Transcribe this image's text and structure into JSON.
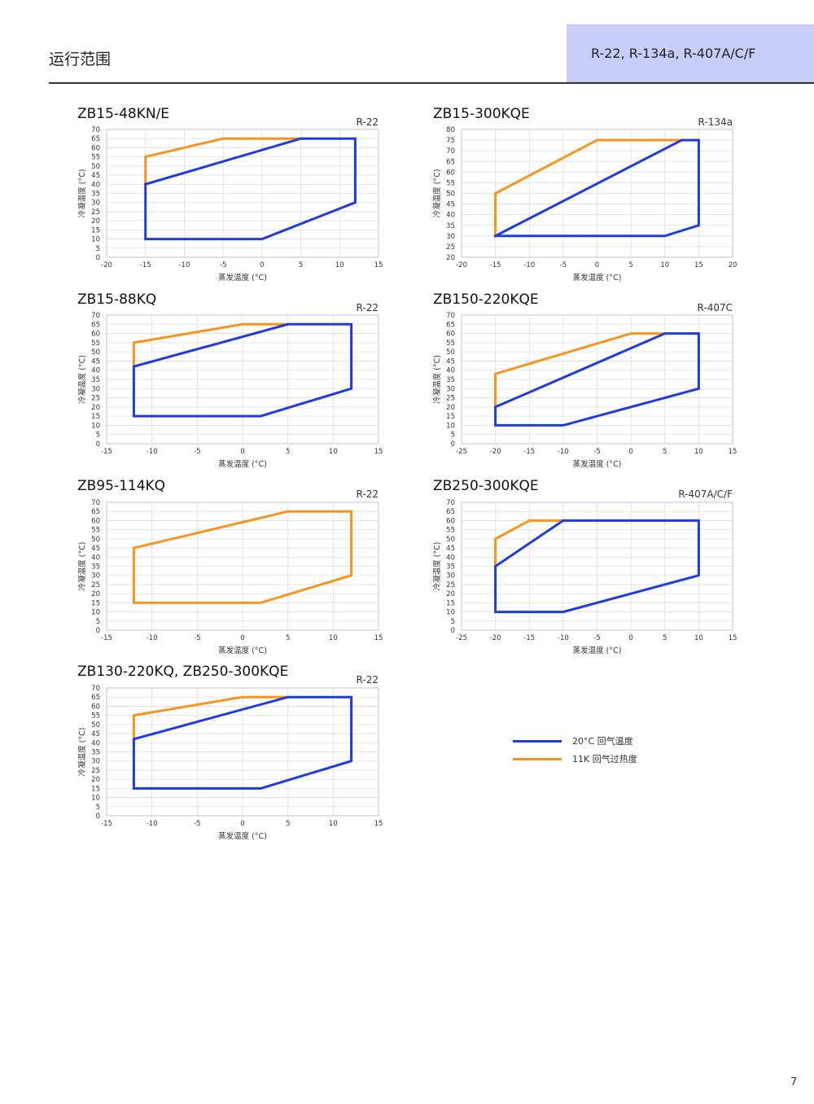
{
  "header": {
    "title": "运行范围",
    "refrigerants": "R-22, R-134a, R-407A/C/F"
  },
  "colors": {
    "blue": "#1f3ae0",
    "orange": "#f7941d",
    "grid": "#dddddd"
  },
  "legend": [
    {
      "label": "20°C 回气温度",
      "color": "#1f3ae0"
    },
    {
      "label": "11K 回气过热度",
      "color": "#f7941d"
    }
  ],
  "page_number": "7",
  "chart_data": [
    {
      "type": "line",
      "title": "ZB15-48KN/E",
      "refrigerant": "R-22",
      "xlabel": "蒸发温度 (°C)",
      "ylabel": "冷凝温度 (°C)",
      "xlim": [
        -20,
        15
      ],
      "ylim": [
        0,
        70
      ],
      "xticks": [
        -20,
        -15,
        -10,
        -5,
        0,
        5,
        10,
        15
      ],
      "yticks": [
        0,
        5,
        10,
        15,
        20,
        25,
        30,
        35,
        40,
        45,
        50,
        55,
        60,
        65,
        70
      ],
      "series": [
        {
          "color": "#f7941d",
          "points": [
            [
              -15,
              40
            ],
            [
              -15,
              55
            ],
            [
              -5,
              65
            ],
            [
              5,
              65
            ]
          ]
        },
        {
          "color": "#1f3ae0",
          "points": [
            [
              -15,
              10
            ],
            [
              0,
              10
            ],
            [
              12,
              30
            ],
            [
              12,
              65
            ],
            [
              5,
              65
            ],
            [
              -15,
              40
            ],
            [
              -15,
              10
            ]
          ]
        }
      ]
    },
    {
      "type": "line",
      "title": "ZB15-300KQE",
      "refrigerant": "R-134a",
      "xlabel": "蒸发温度 (°C)",
      "ylabel": "冷凝温度 (°C)",
      "xlim": [
        -20,
        20
      ],
      "ylim": [
        20,
        80
      ],
      "xticks": [
        -20,
        -15,
        -10,
        -5,
        0,
        5,
        10,
        15,
        20
      ],
      "yticks": [
        20,
        25,
        30,
        35,
        40,
        45,
        50,
        55,
        60,
        65,
        70,
        75,
        80
      ],
      "series": [
        {
          "color": "#f7941d",
          "points": [
            [
              -15,
              30
            ],
            [
              -15,
              50
            ],
            [
              0,
              75
            ],
            [
              12.5,
              75
            ]
          ]
        },
        {
          "color": "#1f3ae0",
          "points": [
            [
              -15,
              30
            ],
            [
              10,
              30
            ],
            [
              15,
              35
            ],
            [
              15,
              75
            ],
            [
              12.5,
              75
            ],
            [
              -15,
              30
            ]
          ]
        }
      ]
    },
    {
      "type": "line",
      "title": "ZB15-88KQ",
      "refrigerant": "R-22",
      "xlabel": "蒸发温度 (°C)",
      "ylabel": "冷凝温度 (°C)",
      "xlim": [
        -15,
        15
      ],
      "ylim": [
        0,
        70
      ],
      "xticks": [
        -15,
        -10,
        -5,
        0,
        5,
        10,
        15
      ],
      "yticks": [
        0,
        5,
        10,
        15,
        20,
        25,
        30,
        35,
        40,
        45,
        50,
        55,
        60,
        65,
        70
      ],
      "series": [
        {
          "color": "#f7941d",
          "points": [
            [
              -12,
              42
            ],
            [
              -12,
              55
            ],
            [
              0,
              65
            ],
            [
              5,
              65
            ]
          ]
        },
        {
          "color": "#1f3ae0",
          "points": [
            [
              -12,
              15
            ],
            [
              2,
              15
            ],
            [
              12,
              30
            ],
            [
              12,
              65
            ],
            [
              5,
              65
            ],
            [
              -12,
              42
            ],
            [
              -12,
              15
            ]
          ]
        }
      ]
    },
    {
      "type": "line",
      "title": "ZB150-220KQE",
      "refrigerant": "R-407C",
      "xlabel": "蒸发温度 (°C)",
      "ylabel": "冷凝温度 (°C)",
      "xlim": [
        -25,
        15
      ],
      "ylim": [
        0,
        70
      ],
      "xticks": [
        -25,
        -20,
        -15,
        -10,
        -5,
        0,
        5,
        10,
        15
      ],
      "yticks": [
        0,
        5,
        10,
        15,
        20,
        25,
        30,
        35,
        40,
        45,
        50,
        55,
        60,
        65,
        70
      ],
      "series": [
        {
          "color": "#f7941d",
          "points": [
            [
              -20,
              20
            ],
            [
              -20,
              38
            ],
            [
              0,
              60
            ],
            [
              5,
              60
            ]
          ]
        },
        {
          "color": "#1f3ae0",
          "points": [
            [
              -20,
              10
            ],
            [
              -10,
              10
            ],
            [
              10,
              30
            ],
            [
              10,
              60
            ],
            [
              5,
              60
            ],
            [
              -20,
              20
            ],
            [
              -20,
              10
            ]
          ]
        }
      ]
    },
    {
      "type": "line",
      "title": "ZB95-114KQ",
      "refrigerant": "R-22",
      "xlabel": "蒸发温度 (°C)",
      "ylabel": "冷凝温度 (°C)",
      "xlim": [
        -15,
        15
      ],
      "ylim": [
        0,
        70
      ],
      "xticks": [
        -15,
        -10,
        -5,
        0,
        5,
        10,
        15
      ],
      "yticks": [
        0,
        5,
        10,
        15,
        20,
        25,
        30,
        35,
        40,
        45,
        50,
        55,
        60,
        65,
        70
      ],
      "series": [
        {
          "color": "#f7941d",
          "points": [
            [
              -12,
              15
            ],
            [
              2,
              15
            ],
            [
              12,
              30
            ],
            [
              12,
              65
            ],
            [
              5,
              65
            ],
            [
              -12,
              45
            ],
            [
              -12,
              15
            ]
          ]
        }
      ]
    },
    {
      "type": "line",
      "title": "ZB250-300KQE",
      "refrigerant": "R-407A/C/F",
      "xlabel": "蒸发温度 (°C)",
      "ylabel": "冷凝温度 (°C)",
      "xlim": [
        -25,
        15
      ],
      "ylim": [
        0,
        70
      ],
      "xticks": [
        -25,
        -20,
        -15,
        -10,
        -5,
        0,
        5,
        10,
        15
      ],
      "yticks": [
        0,
        5,
        10,
        15,
        20,
        25,
        30,
        35,
        40,
        45,
        50,
        55,
        60,
        65,
        70
      ],
      "series": [
        {
          "color": "#f7941d",
          "points": [
            [
              -20,
              35
            ],
            [
              -20,
              50
            ],
            [
              -15,
              60
            ],
            [
              -10,
              60
            ]
          ]
        },
        {
          "color": "#1f3ae0",
          "points": [
            [
              -20,
              10
            ],
            [
              -10,
              10
            ],
            [
              10,
              30
            ],
            [
              10,
              60
            ],
            [
              -10,
              60
            ],
            [
              -20,
              35
            ],
            [
              -20,
              10
            ]
          ]
        }
      ]
    },
    {
      "type": "line",
      "title": "ZB130-220KQ, ZB250-300KQE",
      "refrigerant": "R-22",
      "xlabel": "蒸发温度 (°C)",
      "ylabel": "冷凝温度 (°C)",
      "xlim": [
        -15,
        15
      ],
      "ylim": [
        0,
        70
      ],
      "xticks": [
        -15,
        -10,
        -5,
        0,
        5,
        10,
        15
      ],
      "yticks": [
        0,
        5,
        10,
        15,
        20,
        25,
        30,
        35,
        40,
        45,
        50,
        55,
        60,
        65,
        70
      ],
      "series": [
        {
          "color": "#f7941d",
          "points": [
            [
              -12,
              42
            ],
            [
              -12,
              55
            ],
            [
              0,
              65
            ],
            [
              5,
              65
            ]
          ]
        },
        {
          "color": "#1f3ae0",
          "points": [
            [
              -12,
              15
            ],
            [
              2,
              15
            ],
            [
              12,
              30
            ],
            [
              12,
              65
            ],
            [
              5,
              65
            ],
            [
              -12,
              42
            ],
            [
              -12,
              15
            ]
          ]
        }
      ]
    }
  ]
}
